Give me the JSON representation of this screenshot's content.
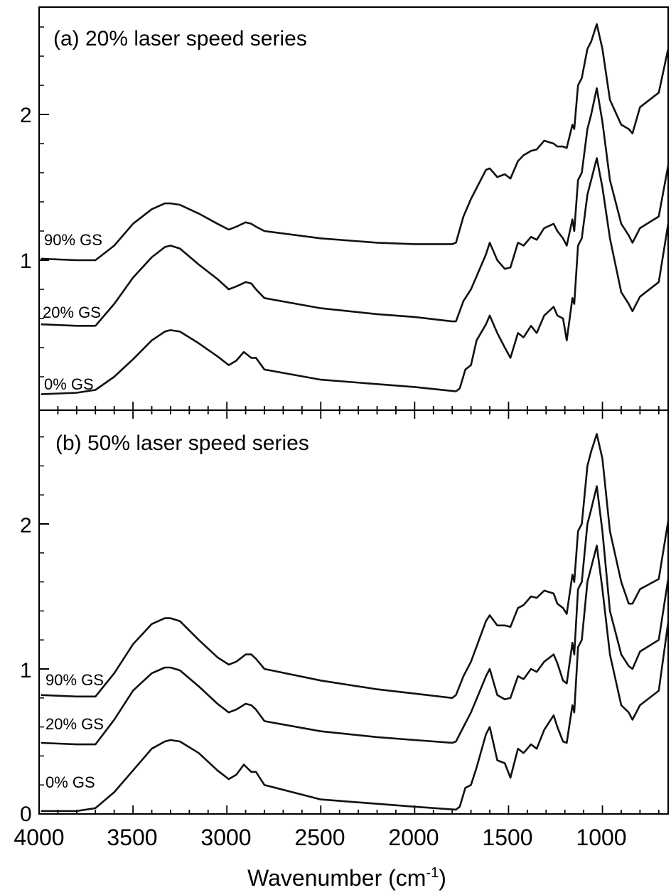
{
  "chart_data": {
    "type": "line",
    "xlabel": "Wavenumber (cm",
    "xlabel_sup": "-1",
    "xlabel_close": ")",
    "xlim": [
      4000,
      650
    ],
    "x_ticks": [
      4000,
      3500,
      3000,
      2500,
      2000,
      1500,
      1000
    ],
    "x_tick_labels": [
      "4000",
      "3500",
      "3000",
      "2500",
      "2000",
      "1500",
      "1000"
    ],
    "panels": [
      {
        "title": "(a) 20% laser speed series",
        "ylim": [
          0,
          2.8
        ],
        "y_ticks": [
          1,
          2
        ],
        "y_tick_labels": [
          "1",
          "2"
        ],
        "series": [
          {
            "name": "0% GS",
            "x": [
              3990,
              3800,
              3700,
              3600,
              3500,
              3400,
              3330,
              3300,
              3250,
              3150,
              3050,
              2990,
              2950,
              2910,
              2870,
              2845,
              2800,
              2500,
              2200,
              2000,
              1780,
              1760,
              1730,
              1700,
              1670,
              1620,
              1600,
              1560,
              1520,
              1490,
              1450,
              1420,
              1380,
              1350,
              1310,
              1260,
              1240,
              1210,
              1190,
              1160,
              1150,
              1130,
              1110,
              1080,
              1060,
              1030,
              1000,
              960,
              900,
              860,
              840,
              800,
              700,
              650
            ],
            "y": [
              0.08,
              0.09,
              0.11,
              0.2,
              0.32,
              0.45,
              0.51,
              0.52,
              0.51,
              0.43,
              0.34,
              0.28,
              0.31,
              0.37,
              0.33,
              0.33,
              0.25,
              0.18,
              0.15,
              0.13,
              0.1,
              0.12,
              0.25,
              0.28,
              0.45,
              0.56,
              0.62,
              0.5,
              0.4,
              0.33,
              0.5,
              0.47,
              0.55,
              0.5,
              0.62,
              0.68,
              0.62,
              0.6,
              0.45,
              0.74,
              0.7,
              1.1,
              1.15,
              1.45,
              1.55,
              1.7,
              1.5,
              1.15,
              0.78,
              0.7,
              0.65,
              0.75,
              0.85,
              1.25
            ]
          },
          {
            "name": "20% GS",
            "x": [
              3990,
              3800,
              3700,
              3600,
              3500,
              3400,
              3330,
              3300,
              3250,
              3150,
              3050,
              2990,
              2950,
              2900,
              2870,
              2845,
              2800,
              2500,
              2200,
              2000,
              1800,
              1780,
              1740,
              1700,
              1620,
              1600,
              1560,
              1520,
              1490,
              1450,
              1420,
              1380,
              1350,
              1310,
              1260,
              1240,
              1210,
              1190,
              1160,
              1150,
              1130,
              1110,
              1080,
              1060,
              1030,
              1000,
              960,
              900,
              860,
              840,
              800,
              700,
              650
            ],
            "y": [
              0.56,
              0.55,
              0.55,
              0.7,
              0.88,
              1.02,
              1.09,
              1.1,
              1.08,
              0.97,
              0.87,
              0.8,
              0.82,
              0.85,
              0.84,
              0.8,
              0.74,
              0.67,
              0.63,
              0.61,
              0.58,
              0.58,
              0.72,
              0.8,
              1.04,
              1.12,
              1.0,
              0.94,
              0.95,
              1.12,
              1.1,
              1.16,
              1.14,
              1.22,
              1.25,
              1.2,
              1.15,
              1.1,
              1.28,
              1.2,
              1.55,
              1.6,
              1.9,
              2.0,
              2.18,
              1.95,
              1.55,
              1.25,
              1.17,
              1.12,
              1.22,
              1.3,
              1.65
            ]
          },
          {
            "name": "90% GS",
            "x": [
              3990,
              3800,
              3700,
              3600,
              3500,
              3400,
              3330,
              3300,
              3250,
              3150,
              3050,
              2990,
              2950,
              2900,
              2870,
              2845,
              2800,
              2500,
              2200,
              2000,
              1800,
              1780,
              1740,
              1700,
              1620,
              1600,
              1560,
              1520,
              1490,
              1450,
              1420,
              1380,
              1350,
              1310,
              1260,
              1240,
              1210,
              1190,
              1160,
              1150,
              1130,
              1110,
              1080,
              1060,
              1030,
              1000,
              960,
              900,
              860,
              840,
              800,
              700,
              650
            ],
            "y": [
              1.01,
              1.0,
              1.0,
              1.1,
              1.25,
              1.35,
              1.39,
              1.39,
              1.38,
              1.32,
              1.25,
              1.21,
              1.23,
              1.26,
              1.25,
              1.23,
              1.2,
              1.15,
              1.12,
              1.11,
              1.11,
              1.12,
              1.3,
              1.42,
              1.62,
              1.63,
              1.57,
              1.59,
              1.56,
              1.68,
              1.72,
              1.75,
              1.76,
              1.82,
              1.8,
              1.78,
              1.78,
              1.77,
              1.93,
              1.9,
              2.2,
              2.25,
              2.45,
              2.5,
              2.62,
              2.45,
              2.1,
              1.93,
              1.9,
              1.87,
              2.05,
              2.15,
              2.45
            ]
          }
        ],
        "series_labels": [
          "0% GS",
          "20% GS",
          "90% GS"
        ]
      },
      {
        "title": "(b) 50% laser speed series",
        "ylim": [
          0,
          2.8
        ],
        "y_ticks": [
          0,
          1,
          2
        ],
        "y_tick_labels": [
          "0",
          "1",
          "2"
        ],
        "series": [
          {
            "name": "0% GS",
            "x": [
              3990,
              3800,
              3700,
              3600,
              3500,
              3400,
              3330,
              3300,
              3250,
              3150,
              3050,
              2990,
              2950,
              2910,
              2870,
              2845,
              2800,
              2500,
              2200,
              2000,
              1780,
              1760,
              1730,
              1700,
              1670,
              1620,
              1600,
              1560,
              1520,
              1490,
              1450,
              1420,
              1380,
              1350,
              1310,
              1260,
              1240,
              1210,
              1190,
              1160,
              1150,
              1130,
              1110,
              1080,
              1060,
              1030,
              1000,
              960,
              900,
              860,
              840,
              800,
              700,
              650
            ],
            "y": [
              0.02,
              0.02,
              0.04,
              0.15,
              0.3,
              0.45,
              0.5,
              0.51,
              0.5,
              0.42,
              0.3,
              0.24,
              0.27,
              0.34,
              0.29,
              0.29,
              0.2,
              0.1,
              0.07,
              0.05,
              0.03,
              0.05,
              0.18,
              0.2,
              0.32,
              0.55,
              0.6,
              0.37,
              0.35,
              0.25,
              0.45,
              0.42,
              0.48,
              0.45,
              0.58,
              0.68,
              0.6,
              0.5,
              0.49,
              0.75,
              0.7,
              1.15,
              1.2,
              1.6,
              1.7,
              1.85,
              1.55,
              1.1,
              0.75,
              0.7,
              0.65,
              0.75,
              0.85,
              1.32
            ]
          },
          {
            "name": "20% GS",
            "x": [
              3990,
              3800,
              3700,
              3600,
              3500,
              3400,
              3330,
              3300,
              3250,
              3150,
              3050,
              2990,
              2950,
              2900,
              2870,
              2845,
              2800,
              2500,
              2200,
              2000,
              1800,
              1780,
              1740,
              1700,
              1620,
              1600,
              1560,
              1520,
              1490,
              1450,
              1420,
              1380,
              1350,
              1310,
              1260,
              1240,
              1210,
              1190,
              1160,
              1150,
              1130,
              1110,
              1080,
              1060,
              1030,
              1000,
              960,
              900,
              860,
              840,
              800,
              700,
              650
            ],
            "y": [
              0.49,
              0.48,
              0.48,
              0.65,
              0.85,
              0.97,
              1.01,
              1.01,
              0.99,
              0.88,
              0.76,
              0.7,
              0.72,
              0.76,
              0.75,
              0.72,
              0.64,
              0.57,
              0.53,
              0.51,
              0.49,
              0.5,
              0.6,
              0.7,
              0.95,
              1.0,
              0.82,
              0.79,
              0.8,
              0.95,
              0.93,
              1.0,
              0.98,
              1.05,
              1.1,
              1.04,
              0.92,
              0.9,
              1.18,
              1.1,
              1.55,
              1.6,
              2.0,
              2.1,
              2.26,
              1.95,
              1.4,
              1.1,
              1.02,
              1.0,
              1.12,
              1.2,
              1.62
            ]
          },
          {
            "name": "90% GS",
            "x": [
              3990,
              3800,
              3700,
              3600,
              3500,
              3400,
              3330,
              3300,
              3250,
              3150,
              3050,
              2990,
              2950,
              2900,
              2870,
              2845,
              2800,
              2500,
              2200,
              2000,
              1800,
              1780,
              1740,
              1700,
              1620,
              1600,
              1560,
              1520,
              1490,
              1450,
              1420,
              1380,
              1350,
              1310,
              1260,
              1240,
              1210,
              1190,
              1160,
              1150,
              1130,
              1110,
              1080,
              1060,
              1030,
              1000,
              960,
              900,
              860,
              840,
              800,
              700,
              650
            ],
            "y": [
              0.82,
              0.81,
              0.81,
              0.97,
              1.17,
              1.31,
              1.35,
              1.35,
              1.33,
              1.2,
              1.08,
              1.03,
              1.05,
              1.1,
              1.1,
              1.07,
              1.0,
              0.92,
              0.86,
              0.83,
              0.8,
              0.82,
              0.95,
              1.05,
              1.33,
              1.37,
              1.3,
              1.3,
              1.29,
              1.42,
              1.44,
              1.5,
              1.49,
              1.54,
              1.52,
              1.45,
              1.42,
              1.38,
              1.65,
              1.6,
              1.95,
              2.0,
              2.4,
              2.5,
              2.62,
              2.45,
              1.95,
              1.6,
              1.45,
              1.45,
              1.55,
              1.62,
              2.02
            ]
          }
        ],
        "series_labels": [
          "0% GS",
          "20% GS",
          "90% GS"
        ]
      }
    ]
  }
}
